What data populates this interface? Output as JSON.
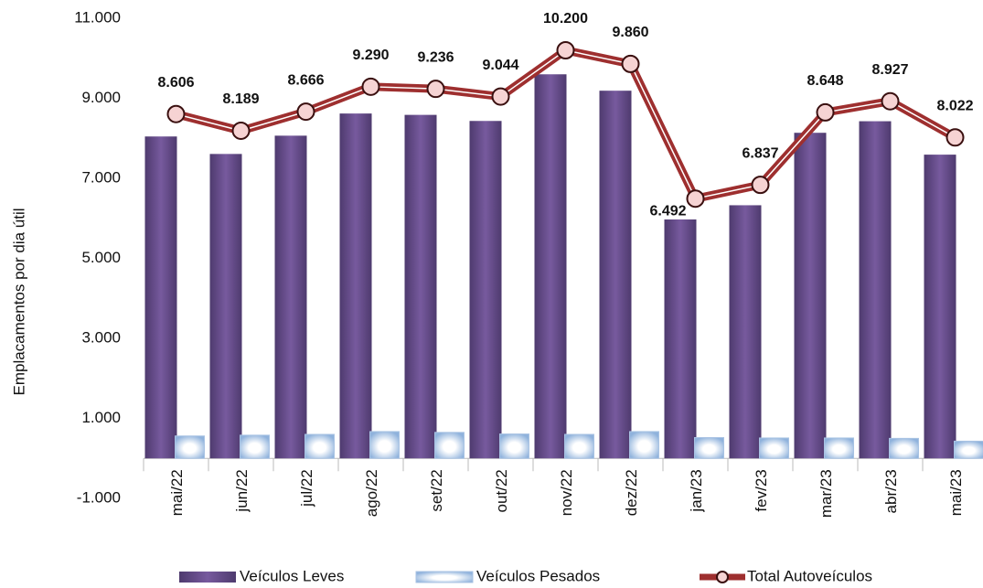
{
  "chart_data": {
    "type": "bar_line",
    "y_label": "Emplacamentos por dia útil",
    "categories": [
      "mai/22",
      "jun/22",
      "jul/22",
      "ago/22",
      "set/22",
      "out/22",
      "nov/22",
      "dez/22",
      "jan/23",
      "fev/23",
      "mar/23",
      "abr/23",
      "mai/23"
    ],
    "series": [
      {
        "name": "Veículos Leves",
        "color": "#6a4f8e",
        "type": "bar",
        "values": [
          8046,
          7609,
          8066,
          8620,
          8586,
          8434,
          9600,
          9190,
          5972,
          6327,
          8138,
          8427,
          7592
        ]
      },
      {
        "name": "Veículos Pesados",
        "color": "#bcd4ee",
        "type": "bar",
        "values": [
          560,
          580,
          600,
          670,
          650,
          610,
          600,
          670,
          520,
          510,
          510,
          500,
          430
        ]
      },
      {
        "name": "Total Autoveículos",
        "color": "#9e2f2f",
        "type": "line",
        "values": [
          8606,
          8189,
          8666,
          9290,
          9236,
          9044,
          10200,
          9860,
          6492,
          6837,
          8648,
          8927,
          8022
        ],
        "value_labels": [
          "8.606",
          "8.189",
          "8.666",
          "9.290",
          "9.236",
          "9.044",
          "10.200",
          "9.860",
          "6.492",
          "6.837",
          "8.648",
          "8.927",
          "8.022"
        ]
      }
    ],
    "ylim": [
      -1000,
      11000
    ],
    "yticks": [
      {
        "value": -1000,
        "label": "-1.000"
      },
      {
        "value": 1000,
        "label": "1.000"
      },
      {
        "value": 3000,
        "label": "3.000"
      },
      {
        "value": 5000,
        "label": "5.000"
      },
      {
        "value": 7000,
        "label": "7.000"
      },
      {
        "value": 9000,
        "label": "9.000"
      },
      {
        "value": 11000,
        "label": "11.000"
      }
    ],
    "legend": "bottom"
  }
}
